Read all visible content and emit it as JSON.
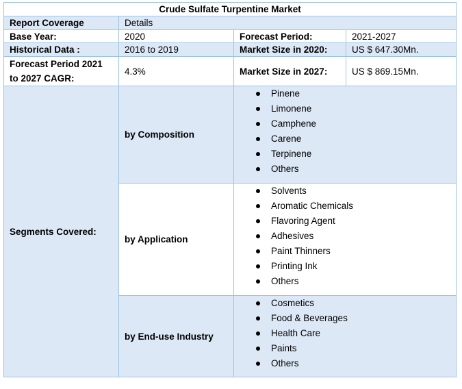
{
  "title": "Crude Sulfate Turpentine Market",
  "rows": {
    "coverage": {
      "label": "Report Coverage",
      "value": "Details"
    },
    "base": {
      "label": "Base Year:",
      "value": "2020",
      "label2": "Forecast Period:",
      "value2": "2021-2027"
    },
    "historical": {
      "label": "Historical Data :",
      "value": "2016 to 2019",
      "label2": "Market Size in 2020:",
      "value2": "US $ 647.30Mn."
    },
    "cagr": {
      "label_line1": "Forecast Period 2021",
      "label_line2": "to 2027 CAGR:",
      "value": "4.3%",
      "label2": "Market Size in 2027:",
      "value2": "US $ 869.15Mn."
    }
  },
  "segments": {
    "label": "Segments Covered:",
    "groups": [
      {
        "name": "by Composition",
        "items": [
          "Pinene",
          "Limonene",
          "Camphene",
          "Carene",
          "Terpinene",
          "Others"
        ]
      },
      {
        "name": "by Application",
        "items": [
          "Solvents",
          "Aromatic Chemicals",
          "Flavoring Agent",
          "Adhesives",
          "Paint Thinners",
          "Printing Ink",
          "Others"
        ]
      },
      {
        "name": "by End-use Industry",
        "items": [
          "Cosmetics",
          "Food & Beverages",
          "Health Care",
          "Paints",
          "Others"
        ]
      }
    ]
  },
  "colors": {
    "header_fill": "#dde8f6",
    "border": "#9dc3e6"
  }
}
